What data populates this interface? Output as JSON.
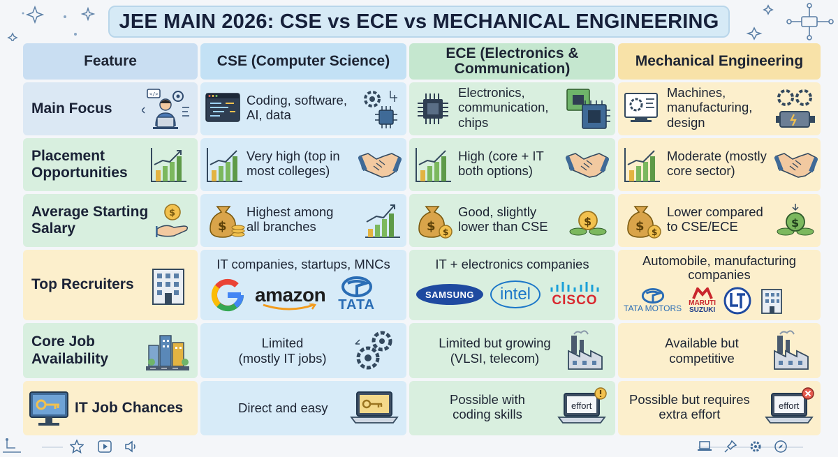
{
  "title": "JEE MAIN 2026: CSE vs ECE vs MECHANICAL ENGINEERING",
  "headers": {
    "feature": "Feature",
    "cse": "CSE (Computer Science)",
    "ece_line1": "ECE (Electronics &",
    "ece_line2": "Communication)",
    "mech": "Mechanical Engineering"
  },
  "rows": {
    "main_focus": {
      "label": "Main Focus",
      "cse_l1": "Coding, software,",
      "cse_l2": "AI, data",
      "ece_l1": "Electronics,",
      "ece_l2": "communication,",
      "ece_l3": "chips",
      "mech_l1": "Machines,",
      "mech_l2": "manufacturing,",
      "mech_l3": "design"
    },
    "placement": {
      "label_l1": "Placement",
      "label_l2": "Opportunities",
      "cse_l1": "Very high (top in",
      "cse_l2": "most colleges)",
      "ece_l1": "High (core + IT",
      "ece_l2": "both options)",
      "mech_l1": "Moderate (mostly",
      "mech_l2": "core sector)"
    },
    "salary": {
      "label_l1": "Average Starting",
      "label_l2": "Salary",
      "cse_l1": "Highest among",
      "cse_l2": "all branches",
      "ece_l1": "Good, slightly",
      "ece_l2": "lower than CSE",
      "mech_l1": "Lower compared",
      "mech_l2": "to CSE/ECE"
    },
    "recruiters": {
      "label": "Top Recruiters",
      "cse": "IT companies, startups, MNCs",
      "ece": "IT + electronics companies",
      "mech_l1": "Automobile, manufacturing",
      "mech_l2": "companies",
      "cse_logos": {
        "amazon": "amazon",
        "tata": "TATA"
      },
      "ece_logos": {
        "samsung": "SAMSUNG",
        "intel": "intel",
        "cisco": "CISCO"
      },
      "mech_logos": {
        "tata_motors": "TATA MOTORS",
        "maruti_l1": "MARUTI",
        "maruti_l2": "SUZUKI"
      }
    },
    "core_jobs": {
      "label_l1": "Core Job",
      "label_l2": "Availability",
      "cse_l1": "Limited",
      "cse_l2": "(mostly IT jobs)",
      "ece_l1": "Limited but growing",
      "ece_l2": "(VLSI, telecom)",
      "mech_l1": "Available but",
      "mech_l2": "competitive"
    },
    "it_jobs": {
      "label": "IT Job Chances",
      "cse": "Direct and easy",
      "ece_l1": "Possible with",
      "ece_l2": "coding skills",
      "mech_l1": "Possible but requires",
      "mech_l2": "extra effort",
      "screen_word": "effort"
    }
  },
  "colors": {
    "feature_col": "#dde9f5",
    "cse_col": "#d7ebf8",
    "ece_col": "#d9efdf",
    "mech_col": "#fcefcc",
    "title_bg": "#d6eaf6"
  },
  "icons": [
    "person-laptop-icon",
    "code-window-icon",
    "chip-icon",
    "machine-gear-icon",
    "bar-chart-icon",
    "handshake-icon",
    "money-bag-icon",
    "coin-hand-icon",
    "building-icon",
    "city-icon",
    "gears-icon",
    "factory-icon",
    "laptop-key-icon",
    "monitor-key-icon",
    "laptop-effort-icon",
    "star-icon",
    "play-icon",
    "speaker-icon",
    "pin-icon",
    "gear-icon",
    "compass-icon"
  ]
}
